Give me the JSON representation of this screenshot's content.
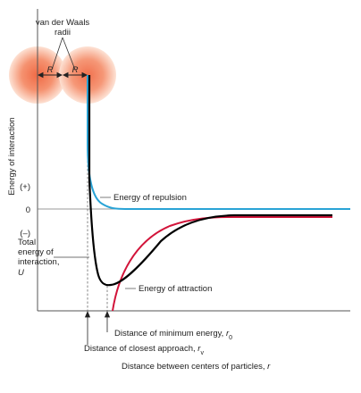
{
  "figure": {
    "vdw_label_line1": "van der Waals",
    "vdw_label_line2": "radii",
    "radius_label_left": "R",
    "radius_label_right": "R",
    "y_axis_label": "Energy of interaction",
    "tick_plus": "(+)",
    "tick_zero": "0",
    "tick_minus": "(–)",
    "repulsion_label": "Energy of repulsion",
    "attraction_label": "Energy of attraction",
    "total_label_line1": "Total",
    "total_label_line2": "energy of",
    "total_label_line3": "interaction,",
    "total_label_line4": "U",
    "min_energy_label": "Distance of minimum energy, ",
    "min_energy_symbol": "r",
    "min_energy_sub": "0",
    "closest_label": "Distance of closest approach, ",
    "closest_symbol": "r",
    "closest_sub": "v",
    "x_axis_label": "Distance between centers of particles, ",
    "x_axis_symbol": "r"
  },
  "colors": {
    "repulsion": "#29a3d6",
    "attraction": "#d2143a",
    "total": "#000000",
    "sphere_center": "#f06a45",
    "sphere_edge": "#fde1d3",
    "axis": "#555555"
  }
}
